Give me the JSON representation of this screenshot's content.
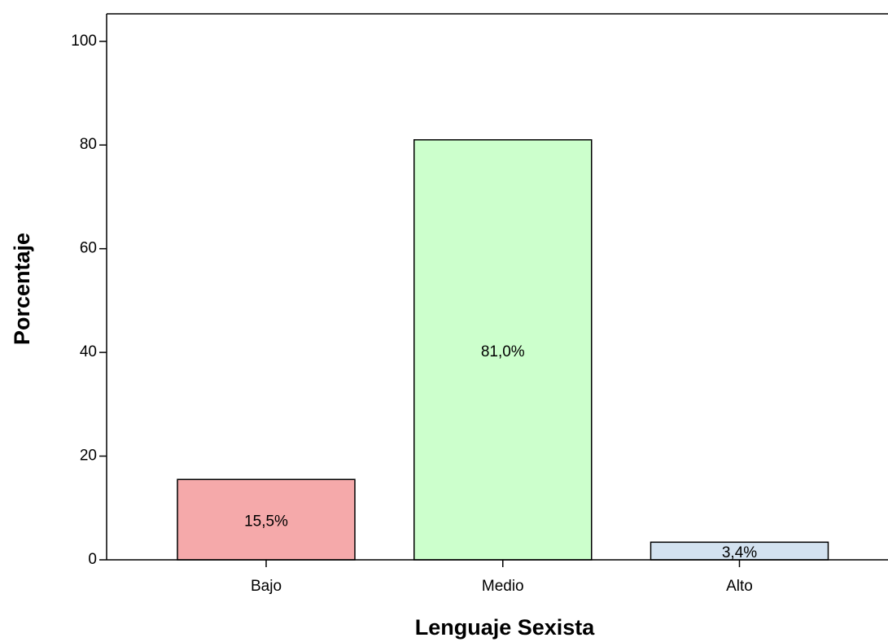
{
  "chart_data": {
    "type": "bar",
    "x_label": "Lenguaje Sexista",
    "y_label": "Porcentaje",
    "categories": [
      "Bajo",
      "Medio",
      "Alto"
    ],
    "values": [
      15.5,
      81.0,
      3.4
    ],
    "value_labels": [
      "15,5%",
      "81,0%",
      "3,4%"
    ],
    "colors": [
      "#f5a9aa",
      "#ccffcc",
      "#d3e2f0"
    ],
    "ylim": [
      0,
      105.3
    ],
    "yticks": [
      0,
      20,
      40,
      60,
      80,
      100
    ],
    "grid": false
  }
}
